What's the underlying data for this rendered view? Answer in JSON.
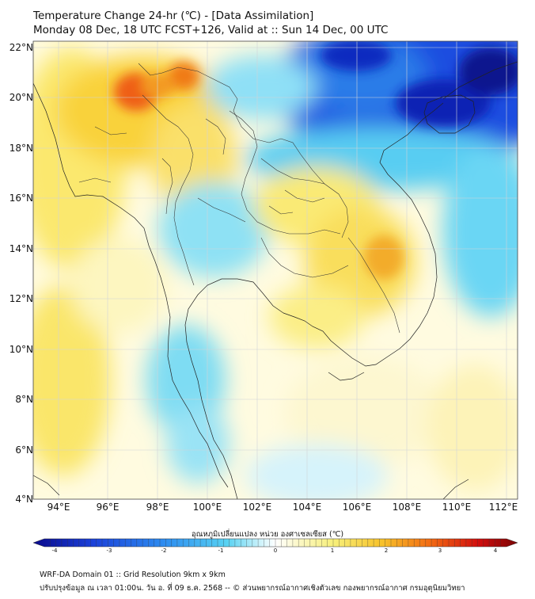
{
  "header": {
    "title_line1": "Temperature Change 24-hr (℃) - [Data Assimilation]",
    "title_line2": "Monday 08 Dec, 18 UTC FCST+126, Valid at :: Sun 14 Dec, 00 UTC"
  },
  "map": {
    "variable": "24-hour temperature change",
    "lat_labels": [
      "22°N",
      "20°N",
      "18°N",
      "16°N",
      "14°N",
      "12°N",
      "10°N",
      "8°N",
      "6°N",
      "4°N"
    ],
    "lon_labels": [
      "94°E",
      "96°E",
      "98°E",
      "100°E",
      "102°E",
      "104°E",
      "106°E",
      "108°E",
      "110°E",
      "112°E"
    ],
    "lat_range": [
      4,
      22
    ],
    "lon_range": [
      93,
      112.5
    ],
    "grid": true
  },
  "colorbar": {
    "title": "อุณหภูมิเปลี่ยนแปลง หน่วย องศาเซลเซียส (℃)",
    "ticks": [
      "-4",
      "-3",
      "-2",
      "-1",
      "0",
      "1",
      "2",
      "3",
      "4"
    ],
    "range": [
      -4,
      4
    ],
    "colors": [
      "#0a0a8c",
      "#1a3fd8",
      "#2d8cf0",
      "#58d2f2",
      "#ffffff",
      "#f7ef7a",
      "#f7c22a",
      "#f26a12",
      "#d10d0d",
      "#7a0505"
    ]
  },
  "footer": {
    "line1": "WRF-DA Domain 01 :: Grid Resolution 9km x 9km",
    "line2": "ปรับปรุงข้อมูล ณ เวลา 01:00น. วัน อ. ที่ 09 ธ.ค. 2568 -- © ส่วนพยากรณ์อากาศเชิงตัวเลข กองพยากรณ์อากาศ กรมอุตุนิยมวิทยา"
  }
}
